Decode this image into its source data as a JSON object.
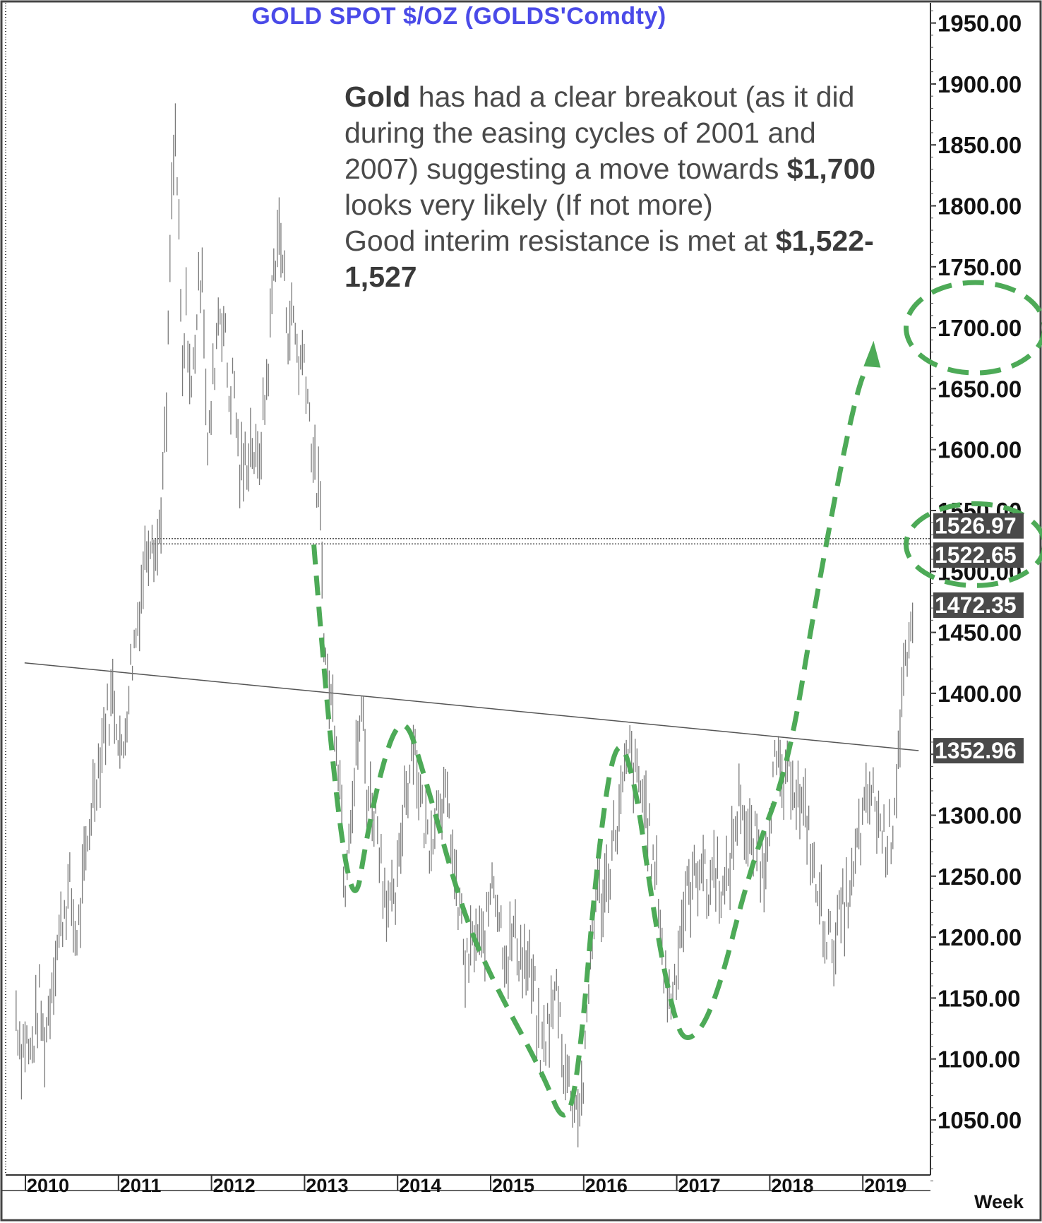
{
  "chart_data": {
    "type": "line",
    "title": "GOLD  SPOT  $/OZ  (GOLDS'Comdty)",
    "frequency_label": "Week",
    "x_axis": {
      "tick_labels": [
        "2010",
        "2011",
        "2012",
        "2013",
        "2014",
        "2015",
        "2016",
        "2017",
        "2018",
        "2019"
      ],
      "range": [
        2010.0,
        2019.6
      ]
    },
    "y_axis": {
      "tick_values": [
        1050,
        1100,
        1150,
        1200,
        1250,
        1300,
        1350,
        1400,
        1450,
        1500,
        1550,
        1600,
        1650,
        1700,
        1750,
        1800,
        1850,
        1900,
        1950
      ],
      "tick_labels": [
        "1050.00",
        "1100.00",
        "1150.00",
        "1200.00",
        "1250.00",
        "1300.00",
        "1350.00",
        "1400.00",
        "1450.00",
        "1500.00",
        "1550.00",
        "1600.00",
        "1650.00",
        "1700.00",
        "1750.00",
        "1800.00",
        "1850.00",
        "1900.00",
        "1950.00"
      ],
      "range": [
        1000,
        1960
      ],
      "position": "right"
    },
    "series": [
      {
        "type": "weekly-bars",
        "color": "#7a7a7a",
        "points": [
          [
            2009.9,
            1140
          ],
          [
            2009.96,
            1105
          ],
          [
            2010.0,
            1120
          ],
          [
            2010.05,
            1100
          ],
          [
            2010.1,
            1120
          ],
          [
            2010.15,
            1150
          ],
          [
            2010.2,
            1110
          ],
          [
            2010.25,
            1140
          ],
          [
            2010.3,
            1175
          ],
          [
            2010.36,
            1200
          ],
          [
            2010.42,
            1225
          ],
          [
            2010.48,
            1240
          ],
          [
            2010.53,
            1200
          ],
          [
            2010.58,
            1210
          ],
          [
            2010.62,
            1245
          ],
          [
            2010.67,
            1275
          ],
          [
            2010.71,
            1310
          ],
          [
            2010.76,
            1335
          ],
          [
            2010.8,
            1345
          ],
          [
            2010.85,
            1375
          ],
          [
            2010.9,
            1385
          ],
          [
            2010.94,
            1400
          ],
          [
            2011.0,
            1370
          ],
          [
            2011.04,
            1340
          ],
          [
            2011.08,
            1380
          ],
          [
            2011.13,
            1420
          ],
          [
            2011.19,
            1450
          ],
          [
            2011.25,
            1490
          ],
          [
            2011.3,
            1520
          ],
          [
            2011.36,
            1540
          ],
          [
            2011.41,
            1510
          ],
          [
            2011.46,
            1555
          ],
          [
            2011.52,
            1630
          ],
          [
            2011.56,
            1780
          ],
          [
            2011.61,
            1860
          ],
          [
            2011.64,
            1800
          ],
          [
            2011.69,
            1650
          ],
          [
            2011.73,
            1720
          ],
          [
            2011.78,
            1640
          ],
          [
            2011.84,
            1710
          ],
          [
            2011.9,
            1760
          ],
          [
            2011.96,
            1590
          ],
          [
            2012.02,
            1660
          ],
          [
            2012.08,
            1720
          ],
          [
            2012.14,
            1700
          ],
          [
            2012.19,
            1640
          ],
          [
            2012.24,
            1660
          ],
          [
            2012.3,
            1580
          ],
          [
            2012.37,
            1590
          ],
          [
            2012.43,
            1610
          ],
          [
            2012.49,
            1580
          ],
          [
            2012.55,
            1620
          ],
          [
            2012.61,
            1670
          ],
          [
            2012.66,
            1740
          ],
          [
            2012.71,
            1780
          ],
          [
            2012.76,
            1760
          ],
          [
            2012.82,
            1700
          ],
          [
            2012.88,
            1710
          ],
          [
            2012.94,
            1670
          ],
          [
            2013.0,
            1680
          ],
          [
            2013.06,
            1620
          ],
          [
            2013.11,
            1580
          ],
          [
            2013.16,
            1560
          ],
          [
            2013.22,
            1430
          ],
          [
            2013.27,
            1400
          ],
          [
            2013.33,
            1380
          ],
          [
            2013.39,
            1320
          ],
          [
            2013.43,
            1240
          ],
          [
            2013.48,
            1300
          ],
          [
            2013.53,
            1320
          ],
          [
            2013.58,
            1370
          ],
          [
            2013.63,
            1380
          ],
          [
            2013.67,
            1320
          ],
          [
            2013.73,
            1310
          ],
          [
            2013.79,
            1290
          ],
          [
            2013.84,
            1250
          ],
          [
            2013.9,
            1230
          ],
          [
            2013.96,
            1220
          ],
          [
            2014.02,
            1260
          ],
          [
            2014.07,
            1320
          ],
          [
            2014.12,
            1330
          ],
          [
            2014.17,
            1370
          ],
          [
            2014.22,
            1330
          ],
          [
            2014.28,
            1295
          ],
          [
            2014.34,
            1280
          ],
          [
            2014.4,
            1300
          ],
          [
            2014.45,
            1320
          ],
          [
            2014.51,
            1310
          ],
          [
            2014.57,
            1290
          ],
          [
            2014.63,
            1230
          ],
          [
            2014.68,
            1220
          ],
          [
            2014.73,
            1170
          ],
          [
            2014.79,
            1190
          ],
          [
            2014.84,
            1200
          ],
          [
            2014.9,
            1190
          ],
          [
            2014.96,
            1210
          ],
          [
            2015.02,
            1260
          ],
          [
            2015.07,
            1230
          ],
          [
            2015.13,
            1200
          ],
          [
            2015.18,
            1180
          ],
          [
            2015.24,
            1205
          ],
          [
            2015.3,
            1190
          ],
          [
            2015.36,
            1180
          ],
          [
            2015.42,
            1170
          ],
          [
            2015.48,
            1150
          ],
          [
            2015.53,
            1100
          ],
          [
            2015.59,
            1120
          ],
          [
            2015.65,
            1135
          ],
          [
            2015.72,
            1160
          ],
          [
            2015.78,
            1100
          ],
          [
            2015.84,
            1080
          ],
          [
            2015.91,
            1060
          ],
          [
            2015.97,
            1065
          ],
          [
            2016.02,
            1100
          ],
          [
            2016.08,
            1200
          ],
          [
            2016.14,
            1240
          ],
          [
            2016.2,
            1230
          ],
          [
            2016.26,
            1250
          ],
          [
            2016.32,
            1280
          ],
          [
            2016.38,
            1300
          ],
          [
            2016.44,
            1330
          ],
          [
            2016.5,
            1350
          ],
          [
            2016.56,
            1330
          ],
          [
            2016.62,
            1320
          ],
          [
            2016.68,
            1300
          ],
          [
            2016.74,
            1260
          ],
          [
            2016.8,
            1240
          ],
          [
            2016.86,
            1170
          ],
          [
            2016.92,
            1150
          ],
          [
            2016.97,
            1160
          ],
          [
            2017.03,
            1200
          ],
          [
            2017.09,
            1230
          ],
          [
            2017.15,
            1240
          ],
          [
            2017.21,
            1250
          ],
          [
            2017.27,
            1270
          ],
          [
            2017.33,
            1230
          ],
          [
            2017.39,
            1260
          ],
          [
            2017.45,
            1250
          ],
          [
            2017.51,
            1230
          ],
          [
            2017.57,
            1260
          ],
          [
            2017.63,
            1290
          ],
          [
            2017.69,
            1320
          ],
          [
            2017.75,
            1280
          ],
          [
            2017.81,
            1275
          ],
          [
            2017.87,
            1280
          ],
          [
            2017.93,
            1250
          ],
          [
            2017.99,
            1300
          ],
          [
            2018.05,
            1340
          ],
          [
            2018.11,
            1330
          ],
          [
            2018.17,
            1320
          ],
          [
            2018.23,
            1340
          ],
          [
            2018.29,
            1320
          ],
          [
            2018.35,
            1300
          ],
          [
            2018.41,
            1295
          ],
          [
            2018.47,
            1250
          ],
          [
            2018.53,
            1230
          ],
          [
            2018.59,
            1210
          ],
          [
            2018.65,
            1195
          ],
          [
            2018.71,
            1200
          ],
          [
            2018.77,
            1220
          ],
          [
            2018.83,
            1230
          ],
          [
            2018.89,
            1240
          ],
          [
            2018.95,
            1280
          ],
          [
            2019.01,
            1295
          ],
          [
            2019.07,
            1320
          ],
          [
            2019.13,
            1310
          ],
          [
            2019.19,
            1290
          ],
          [
            2019.25,
            1280
          ],
          [
            2019.31,
            1285
          ],
          [
            2019.37,
            1340
          ],
          [
            2019.43,
            1410
          ],
          [
            2019.49,
            1420
          ],
          [
            2019.55,
            1460
          ]
        ]
      }
    ],
    "horizontal_lines": [
      {
        "label": "1526.97",
        "value": 1526.97
      },
      {
        "label": "1522.65",
        "value": 1522.65
      }
    ],
    "trend_line": {
      "from": [
        2009.9,
        1425
      ],
      "to": [
        2019.6,
        1353
      ],
      "label": "1352.96"
    },
    "value_markers": [
      {
        "label": "1526.97",
        "value": 1526.97
      },
      {
        "label": "1522.65",
        "value": 1522.65
      },
      {
        "label": "1472.35",
        "value": 1472.35
      },
      {
        "label": "1352.96",
        "value": 1352.96
      }
    ],
    "overlay_color": "#4daa57",
    "projection_path": [
      [
        2013.1,
        1522
      ],
      [
        2013.45,
        1180
      ],
      [
        2013.75,
        1320
      ],
      [
        2014.05,
        1390
      ],
      [
        2014.3,
        1330
      ],
      [
        2014.7,
        1220
      ],
      [
        2015.05,
        1160
      ],
      [
        2015.55,
        1090
      ],
      [
        2015.8,
        1042
      ],
      [
        2015.95,
        1090
      ],
      [
        2016.15,
        1270
      ],
      [
        2016.35,
        1370
      ],
      [
        2016.55,
        1330
      ],
      [
        2016.75,
        1220
      ],
      [
        2016.95,
        1140
      ],
      [
        2017.1,
        1110
      ],
      [
        2017.4,
        1140
      ],
      [
        2017.8,
        1260
      ],
      [
        2018.2,
        1340
      ],
      [
        2018.5,
        1480
      ],
      [
        2018.9,
        1640
      ],
      [
        2019.1,
        1680
      ]
    ],
    "target_ellipses": [
      {
        "x": 2019.45,
        "y": 1700
      },
      {
        "x": 2019.45,
        "y": 1522
      }
    ],
    "annotation": {
      "line1_bold": "Gold",
      "line1_rest": " has had a clear breakout (as it did",
      "line2": "during the easing cycles of 2001 and",
      "line3_pre": "2007) suggesting a move towards ",
      "line3_bold": "$1,700",
      "line4": "looks very likely (If not more)",
      "line5_pre": "Good interim resistance is met at ",
      "line5_bold": "$1,522-",
      "line6_bold": "1,527"
    }
  }
}
